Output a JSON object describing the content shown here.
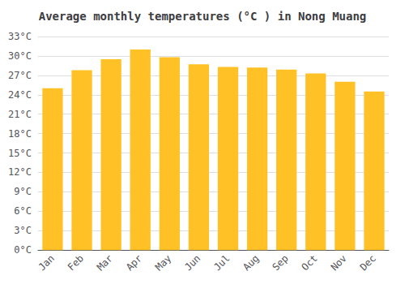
{
  "chart_data": {
    "type": "bar",
    "title": "Average monthly temperatures (°C ) in Nong Muang",
    "categories": [
      "Jan",
      "Feb",
      "Mar",
      "Apr",
      "May",
      "Jun",
      "Jul",
      "Aug",
      "Sep",
      "Oct",
      "Nov",
      "Dec"
    ],
    "values": [
      25.0,
      27.8,
      29.5,
      31.0,
      29.8,
      28.7,
      28.3,
      28.2,
      27.9,
      27.3,
      26.0,
      24.5
    ],
    "color": "#FFC125",
    "ylim": [
      0,
      33
    ],
    "yticks": [
      {
        "value": 0,
        "label": "0°C"
      },
      {
        "value": 3,
        "label": "3°C"
      },
      {
        "value": 6,
        "label": "6°C"
      },
      {
        "value": 9,
        "label": "9°C"
      },
      {
        "value": 12,
        "label": "12°C"
      },
      {
        "value": 15,
        "label": "15°C"
      },
      {
        "value": 18,
        "label": "18°C"
      },
      {
        "value": 21,
        "label": "21°C"
      },
      {
        "value": 24,
        "label": "24°C"
      },
      {
        "value": 27,
        "label": "27°C"
      },
      {
        "value": 30,
        "label": "30°C"
      },
      {
        "value": 33,
        "label": "33°C"
      }
    ],
    "grid": true
  }
}
